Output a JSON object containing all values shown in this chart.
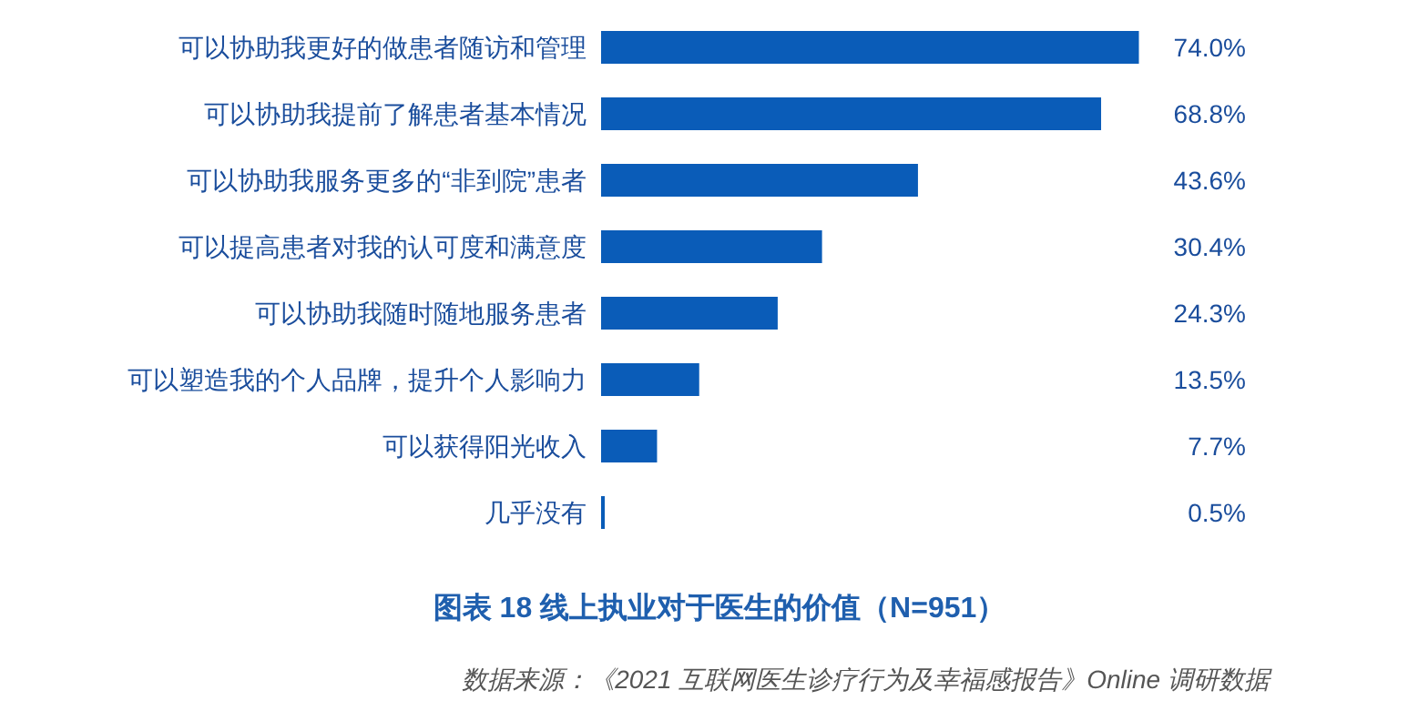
{
  "chart_data": {
    "type": "bar",
    "orientation": "horizontal",
    "title": "图表 18 线上执业对于医生的价值（N=951）",
    "annotations": [
      "数据来源：《2021 互联网医生诊疗行为及幸福感报告》Online 调研数据"
    ],
    "categories": [
      "可以协助我更好的做患者随访和管理",
      "可以协助我提前了解患者基本情况",
      "可以协助我服务更多的“非到院”患者",
      "可以提高患者对我的认可度和满意度",
      "可以协助我随时随地服务患者",
      "可以塑造我的个人品牌，提升个人影响力",
      "可以获得阳光收入",
      "几乎没有"
    ],
    "color": "#0a5cb8",
    "values": [
      74.0,
      68.8,
      43.6,
      30.4,
      24.3,
      13.5,
      7.7,
      0.5
    ],
    "value_labels": [
      "74.0%",
      "68.8%",
      "43.6%",
      "30.4%",
      "24.3%",
      "13.5%",
      "7.7%",
      "0.5%"
    ]
  }
}
